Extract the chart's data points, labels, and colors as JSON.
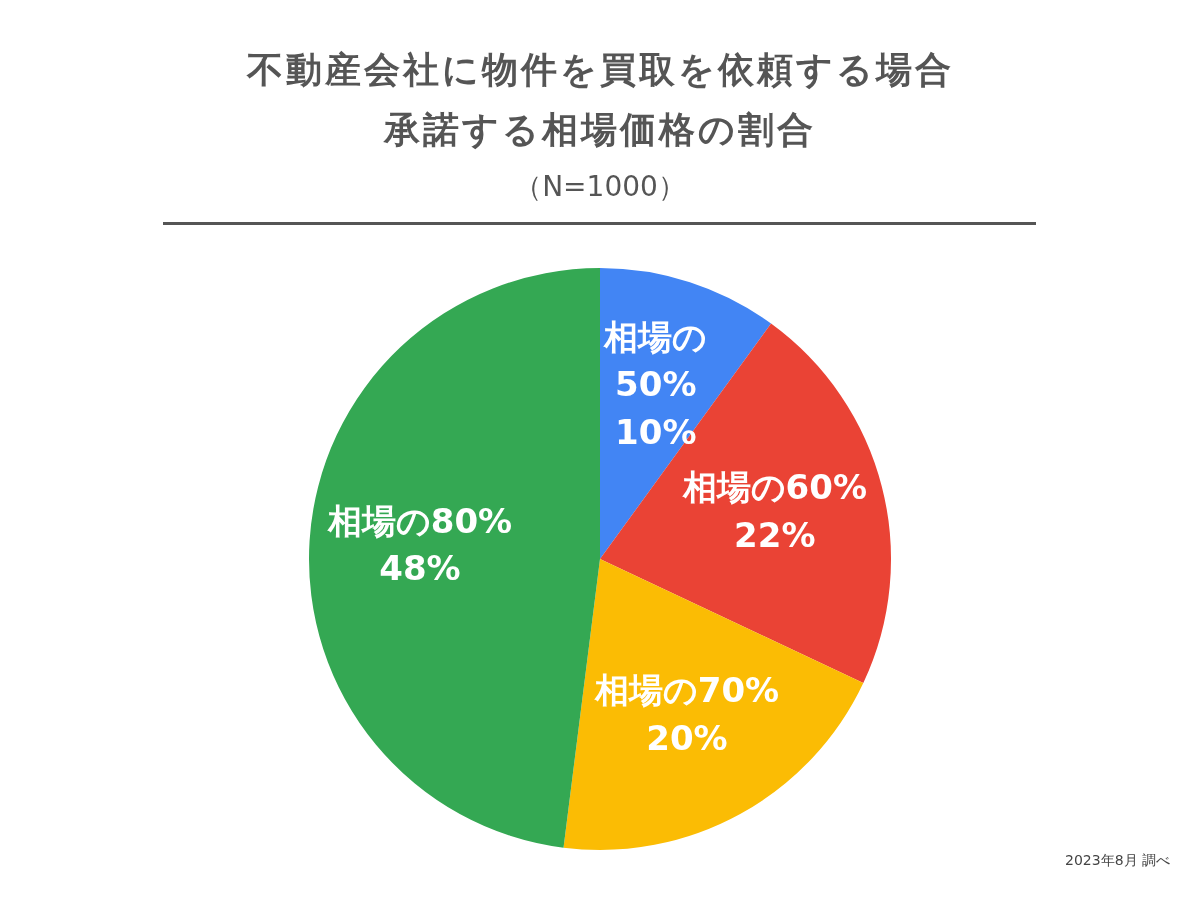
{
  "chart_data": {
    "type": "pie",
    "title": "不動産会社に物件を買取を依頼する場合承諾する相場価格の割合",
    "subtitle": "（N=1000）",
    "categories": [
      "相場の50%",
      "相場の60%",
      "相場の70%",
      "相場の80%"
    ],
    "values": [
      10,
      22,
      20,
      48
    ],
    "colors": [
      "#4285f4",
      "#ea4335",
      "#fbbc04",
      "#34a853"
    ],
    "value_labels": [
      "10%",
      "22%",
      "20%",
      "48%"
    ],
    "legend": false,
    "annotations": [
      "2023年8月 調べ"
    ]
  }
}
